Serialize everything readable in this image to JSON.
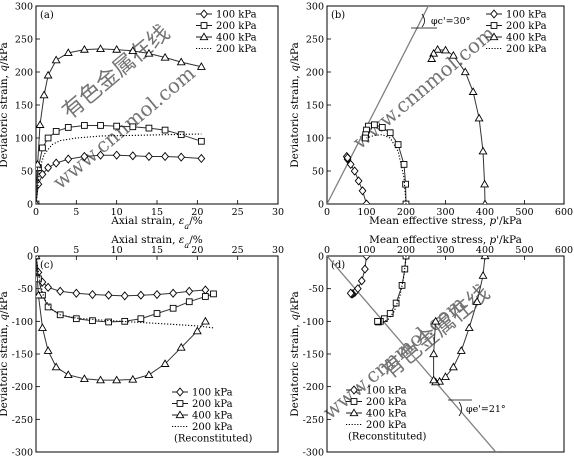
{
  "legend_labels": [
    "100 kPa",
    "200 kPa",
    "400 kPa",
    "200 kPa"
  ],
  "reconstituted_label": "(Reconstituted)",
  "colors": {
    "axis": "#000000",
    "series": "#333333",
    "reference_line": "#808080",
    "watermark": "#d9d9d9"
  },
  "chart_data": [
    {
      "panel": "(a)",
      "type": "line",
      "xlabel": "Axial strain, εa/%",
      "ylabel": "Deviatoric strain, q/kPa",
      "xlim": [
        0,
        30
      ],
      "ylim": [
        0,
        300
      ],
      "xticks": [
        0,
        5,
        10,
        15,
        20,
        25,
        30
      ],
      "yticks": [
        0,
        50,
        100,
        150,
        200,
        250,
        300
      ],
      "grid": false,
      "legend_position": "top-right",
      "series": [
        {
          "name": "100 kPa",
          "marker": "diamond",
          "x": [
            0,
            0.3,
            0.8,
            1.5,
            2.5,
            4,
            6,
            8,
            10,
            12,
            14,
            16,
            18,
            20.5
          ],
          "y": [
            0,
            30,
            45,
            55,
            62,
            68,
            72,
            74,
            74,
            73,
            72,
            72,
            71,
            69
          ]
        },
        {
          "name": "200 kPa",
          "marker": "square",
          "x": [
            0,
            0.3,
            0.8,
            1.5,
            2.5,
            4,
            6,
            8,
            10,
            12,
            14,
            16,
            18,
            20.5
          ],
          "y": [
            0,
            55,
            85,
            100,
            110,
            116,
            119,
            119,
            118,
            117,
            115,
            112,
            105,
            95
          ]
        },
        {
          "name": "400 kPa",
          "marker": "triangle",
          "x": [
            0,
            0.2,
            0.5,
            1,
            1.5,
            2.5,
            4,
            6,
            8,
            10,
            12,
            14,
            16,
            18,
            20.5
          ],
          "y": [
            0,
            60,
            120,
            165,
            195,
            218,
            229,
            234,
            235,
            234,
            232,
            228,
            222,
            215,
            208
          ]
        },
        {
          "name": "200 kPa",
          "style": "dotted",
          "x": [
            0,
            0.5,
            1,
            2,
            3,
            5,
            8,
            12,
            16,
            20.5
          ],
          "y": [
            0,
            55,
            75,
            90,
            96,
            100,
            103,
            104,
            105,
            106
          ]
        }
      ]
    },
    {
      "panel": "(b)",
      "type": "line",
      "xlabel": "Mean effective stress, p'/kPa",
      "ylabel": "Deviatoric strain, q/kPa",
      "xlim": [
        0,
        600
      ],
      "ylim": [
        0,
        300
      ],
      "xticks": [
        0,
        100,
        200,
        300,
        400,
        500,
        600
      ],
      "yticks": [
        0,
        50,
        100,
        150,
        200,
        250,
        300
      ],
      "grid": false,
      "legend_position": "top-right",
      "annotation": "φc'=30°",
      "reference_line": {
        "x": [
          0,
          265
        ],
        "y": [
          0,
          310
        ]
      },
      "series": [
        {
          "name": "100 kPa",
          "marker": "diamond",
          "x": [
            100,
            90,
            80,
            70,
            60,
            52,
            50,
            52
          ],
          "y": [
            0,
            20,
            35,
            50,
            60,
            68,
            72,
            70
          ]
        },
        {
          "name": "200 kPa",
          "marker": "square",
          "x": [
            200,
            199,
            195,
            180,
            160,
            140,
            120,
            105,
            100,
            98,
            97
          ],
          "y": [
            0,
            30,
            60,
            90,
            108,
            116,
            120,
            118,
            112,
            105,
            100
          ]
        },
        {
          "name": "400 kPa",
          "marker": "triangle",
          "x": [
            400,
            399,
            395,
            385,
            370,
            350,
            320,
            300,
            280,
            270,
            265
          ],
          "y": [
            0,
            30,
            80,
            130,
            170,
            200,
            225,
            233,
            234,
            228,
            220
          ]
        },
        {
          "name": "200 kPa",
          "style": "dotted",
          "x": [
            200,
            195,
            180,
            160,
            140,
            120,
            100
          ],
          "y": [
            0,
            40,
            80,
            100,
            105,
            104,
            100
          ]
        }
      ]
    },
    {
      "panel": "(c)",
      "type": "line",
      "xlabel": "Axial strain, εa/%",
      "ylabel": "Deviatoric strain, q/kPa",
      "xlim": [
        0,
        30
      ],
      "ylim": [
        -300,
        0
      ],
      "xticks": [
        0,
        5,
        10,
        15,
        20,
        25,
        30
      ],
      "yticks": [
        -300,
        -250,
        -200,
        -150,
        -100,
        -50,
        0
      ],
      "grid": false,
      "legend_position": "bottom-right",
      "series": [
        {
          "name": "100 kPa",
          "marker": "diamond",
          "x": [
            0,
            0.3,
            0.8,
            1.5,
            3,
            5,
            7,
            9,
            11,
            13,
            15,
            17,
            19,
            21
          ],
          "y": [
            0,
            -25,
            -40,
            -48,
            -54,
            -57,
            -59,
            -60,
            -61,
            -60,
            -59,
            -57,
            -54,
            -52
          ]
        },
        {
          "name": "200 kPa",
          "marker": "square",
          "x": [
            0,
            0.3,
            0.8,
            1.5,
            3,
            5,
            7,
            9,
            11,
            13,
            15,
            17,
            19,
            21,
            22
          ],
          "y": [
            0,
            -35,
            -60,
            -78,
            -90,
            -96,
            -99,
            -101,
            -100,
            -96,
            -88,
            -80,
            -70,
            -62,
            -58
          ]
        },
        {
          "name": "400 kPa",
          "marker": "triangle",
          "x": [
            0,
            0.3,
            0.8,
            1.5,
            2.5,
            4,
            6,
            8,
            10,
            12,
            14,
            16,
            18,
            20,
            21
          ],
          "y": [
            0,
            -60,
            -110,
            -145,
            -170,
            -182,
            -188,
            -190,
            -190,
            -189,
            -182,
            -165,
            -140,
            -115,
            -100
          ]
        },
        {
          "name": "200 kPa",
          "style": "dotted",
          "x": [
            0,
            0.5,
            1,
            2,
            3,
            5,
            8,
            12,
            16,
            20,
            22
          ],
          "y": [
            0,
            -40,
            -65,
            -82,
            -90,
            -95,
            -98,
            -101,
            -104,
            -107,
            -110
          ]
        }
      ]
    },
    {
      "panel": "(d)",
      "type": "line",
      "xlabel": "Mean effective stress, p'/kPa",
      "ylabel": "Deviatoric strain, q/kPa",
      "xlim": [
        0,
        600
      ],
      "ylim": [
        -300,
        0
      ],
      "xticks": [
        0,
        100,
        200,
        300,
        400,
        500,
        600
      ],
      "yticks": [
        -300,
        -250,
        -200,
        -150,
        -100,
        -50,
        0
      ],
      "grid": false,
      "legend_position": "bottom-left",
      "annotation": "φe'=21°",
      "reference_line": {
        "x": [
          0,
          470
        ],
        "y": [
          0,
          -330
        ]
      },
      "series": [
        {
          "name": "100 kPa",
          "marker": "diamond",
          "x": [
            100,
            96,
            88,
            78,
            70,
            65,
            62,
            60
          ],
          "y": [
            0,
            -20,
            -38,
            -50,
            -56,
            -58,
            -58,
            -57
          ]
        },
        {
          "name": "200 kPa",
          "marker": "square",
          "x": [
            200,
            197,
            190,
            175,
            160,
            145,
            135,
            130,
            128
          ],
          "y": [
            0,
            -20,
            -45,
            -72,
            -88,
            -96,
            -100,
            -101,
            -100
          ]
        },
        {
          "name": "400 kPa",
          "marker": "triangle",
          "x": [
            400,
            395,
            380,
            360,
            340,
            320,
            300,
            285,
            275,
            270,
            270,
            275
          ],
          "y": [
            0,
            -30,
            -70,
            -110,
            -145,
            -170,
            -185,
            -192,
            -193,
            -190,
            -150,
            -100
          ]
        },
        {
          "name": "200 kPa",
          "style": "dotted",
          "x": [
            200,
            195,
            185,
            170,
            155,
            140,
            130
          ],
          "y": [
            0,
            -30,
            -60,
            -85,
            -97,
            -102,
            -104
          ]
        }
      ]
    }
  ]
}
